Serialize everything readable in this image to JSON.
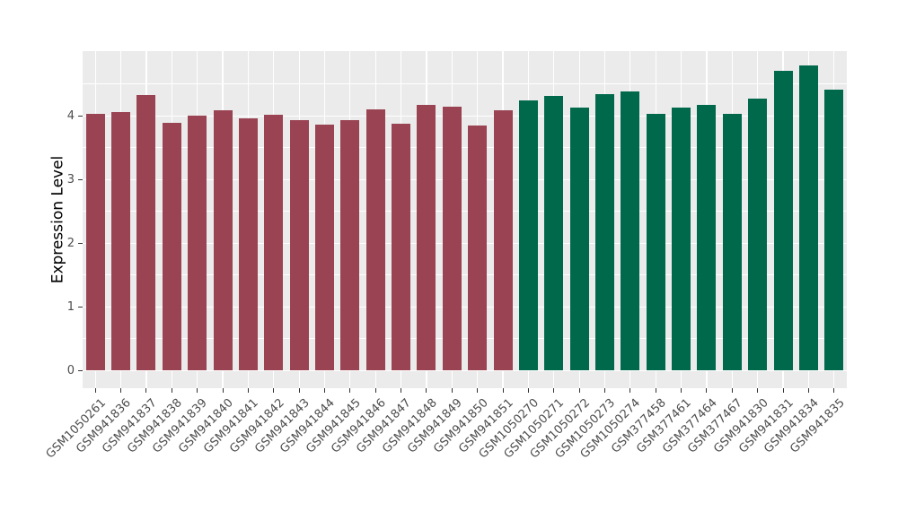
{
  "chart_data": {
    "type": "bar",
    "title": "",
    "xlabel": "",
    "ylabel": "Expression Level",
    "ylim": [
      -0.275,
      5.02
    ],
    "yticks": [
      0,
      1,
      2,
      3,
      4
    ],
    "yticks_minor": [
      0.5,
      1.5,
      2.5,
      3.5,
      4.5
    ],
    "grid": "on",
    "legend": "none",
    "panel_background_color": "#EBEBEB",
    "gridline_color": "#FFFFFF",
    "tick_label_color": "#4D4D4D",
    "group_colors": {
      "left": "#9A4453",
      "right": "#00694C"
    },
    "bars": [
      {
        "label": "GSM1050261",
        "value": 4.03,
        "group": "left"
      },
      {
        "label": "GSM941836",
        "value": 4.06,
        "group": "left"
      },
      {
        "label": "GSM941837",
        "value": 4.33,
        "group": "left"
      },
      {
        "label": "GSM941838",
        "value": 3.89,
        "group": "left"
      },
      {
        "label": "GSM941839",
        "value": 4.0,
        "group": "left"
      },
      {
        "label": "GSM941840",
        "value": 4.09,
        "group": "left"
      },
      {
        "label": "GSM941841",
        "value": 3.97,
        "group": "left"
      },
      {
        "label": "GSM941842",
        "value": 4.02,
        "group": "left"
      },
      {
        "label": "GSM941843",
        "value": 3.94,
        "group": "left"
      },
      {
        "label": "GSM941844",
        "value": 3.86,
        "group": "left"
      },
      {
        "label": "GSM941845",
        "value": 3.93,
        "group": "left"
      },
      {
        "label": "GSM941846",
        "value": 4.1,
        "group": "left"
      },
      {
        "label": "GSM941847",
        "value": 3.88,
        "group": "left"
      },
      {
        "label": "GSM941848",
        "value": 4.17,
        "group": "left"
      },
      {
        "label": "GSM941849",
        "value": 4.14,
        "group": "left"
      },
      {
        "label": "GSM941850",
        "value": 3.85,
        "group": "left"
      },
      {
        "label": "GSM941851",
        "value": 4.09,
        "group": "left"
      },
      {
        "label": "GSM1050270",
        "value": 4.25,
        "group": "right"
      },
      {
        "label": "GSM1050271",
        "value": 4.31,
        "group": "right"
      },
      {
        "label": "GSM1050272",
        "value": 4.13,
        "group": "right"
      },
      {
        "label": "GSM1050273",
        "value": 4.34,
        "group": "right"
      },
      {
        "label": "GSM1050274",
        "value": 4.39,
        "group": "right"
      },
      {
        "label": "GSM377458",
        "value": 4.03,
        "group": "right"
      },
      {
        "label": "GSM377461",
        "value": 4.13,
        "group": "right"
      },
      {
        "label": "GSM377464",
        "value": 4.17,
        "group": "right"
      },
      {
        "label": "GSM377467",
        "value": 4.04,
        "group": "right"
      },
      {
        "label": "GSM941830",
        "value": 4.27,
        "group": "right"
      },
      {
        "label": "GSM941831",
        "value": 4.71,
        "group": "right"
      },
      {
        "label": "GSM941834",
        "value": 4.79,
        "group": "right"
      },
      {
        "label": "GSM941835",
        "value": 4.42,
        "group": "right"
      }
    ]
  }
}
